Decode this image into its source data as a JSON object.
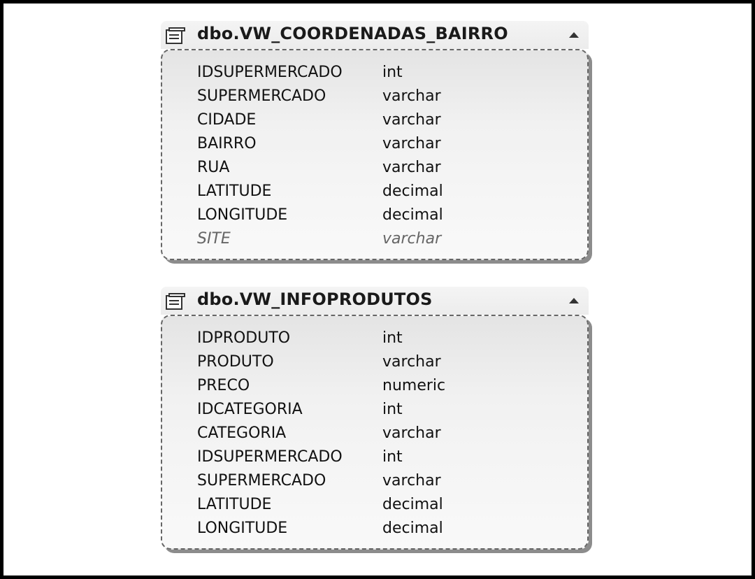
{
  "views": [
    {
      "title": "dbo.VW_COORDENADAS_BAIRRO",
      "columns": [
        {
          "name": "IDSUPERMERCADO",
          "type": "int",
          "italic": false
        },
        {
          "name": "SUPERMERCADO",
          "type": "varchar",
          "italic": false
        },
        {
          "name": "CIDADE",
          "type": "varchar",
          "italic": false
        },
        {
          "name": "BAIRRO",
          "type": "varchar",
          "italic": false
        },
        {
          "name": "RUA",
          "type": "varchar",
          "italic": false
        },
        {
          "name": "LATITUDE",
          "type": "decimal",
          "italic": false
        },
        {
          "name": "LONGITUDE",
          "type": "decimal",
          "italic": false
        },
        {
          "name": "SITE",
          "type": "varchar",
          "italic": true
        }
      ]
    },
    {
      "title": "dbo.VW_INFOPRODUTOS",
      "columns": [
        {
          "name": "IDPRODUTO",
          "type": "int",
          "italic": false
        },
        {
          "name": "PRODUTO",
          "type": "varchar",
          "italic": false
        },
        {
          "name": "PRECO",
          "type": "numeric",
          "italic": false
        },
        {
          "name": "IDCATEGORIA",
          "type": "int",
          "italic": false
        },
        {
          "name": "CATEGORIA",
          "type": "varchar",
          "italic": false
        },
        {
          "name": "IDSUPERMERCADO",
          "type": "int",
          "italic": false
        },
        {
          "name": "SUPERMERCADO",
          "type": "varchar",
          "italic": false
        },
        {
          "name": "LATITUDE",
          "type": "decimal",
          "italic": false
        },
        {
          "name": "LONGITUDE",
          "type": "decimal",
          "italic": false
        }
      ]
    }
  ],
  "icons": {
    "view_icon": "table-view-icon",
    "collapse": "collapse-arrow-icon"
  }
}
